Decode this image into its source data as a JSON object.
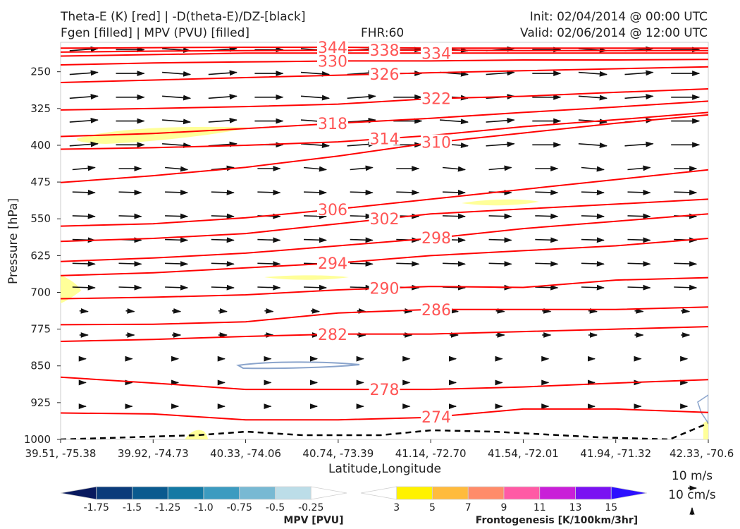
{
  "header": {
    "title_line1": "Theta-E (K) [red] | -D(theta-E)/DZ-[black]",
    "title_line2": "Fgen [filled] | MPV (PVU) [filled]",
    "fhr": "FHR:60",
    "init": "Init: 02/04/2014 @ 00:00 UTC",
    "valid": "Valid: 02/06/2014 @ 12:00 UTC"
  },
  "chart_data": {
    "type": "cross-section",
    "xlabel": "Latitude,Longitude",
    "ylabel": "Pressure [hPa]",
    "x_ticks": [
      "39.51, -75.38",
      "39.92, -74.73",
      "40.33, -74.06",
      "40.74, -73.39",
      "41.14, -72.70",
      "41.54, -72.01",
      "41.94, -71.32",
      "42.33, -70.6"
    ],
    "y_ticks": [
      250,
      325,
      400,
      475,
      550,
      625,
      700,
      775,
      850,
      925,
      1000
    ],
    "y_range": [
      190,
      1000
    ],
    "theta_e_color": "#ff0000",
    "theta_e_label_color": "#ff5555",
    "theta_e_contours": [
      {
        "label": "344",
        "p": [
          202,
          201,
          200,
          200,
          202,
          202,
          202,
          202
        ]
      },
      {
        "label": "338",
        "p": [
          210,
          208,
          207,
          206,
          206,
          207,
          207,
          207
        ]
      },
      {
        "label": "334",
        "p": [
          218,
          215,
          212,
          212,
          212,
          212,
          212,
          212
        ]
      },
      {
        "label": "330",
        "p": [
          236,
          232,
          230,
          228,
          228,
          226,
          226,
          225
        ]
      },
      {
        "label": "326",
        "p": [
          272,
          267,
          262,
          257,
          252,
          248,
          244,
          240
        ]
      },
      {
        "label": "322",
        "p": [
          328,
          325,
          321,
          316,
          305,
          300,
          292,
          285
        ]
      },
      {
        "label": "318",
        "p": [
          382,
          376,
          366,
          355,
          345,
          333,
          322,
          310
        ]
      },
      {
        "label": "314",
        "p": [
          408,
          405,
          400,
          393,
          380,
          362,
          348,
          333
        ]
      },
      {
        "label": "310",
        "p": [
          476,
          462,
          445,
          422,
          395,
          375,
          355,
          338
        ]
      },
      {
        "label": "306",
        "p": [
          565,
          560,
          548,
          530,
          510,
          490,
          470,
          450
        ]
      },
      {
        "label": "302",
        "p": [
          596,
          590,
          580,
          560,
          540,
          530,
          520,
          510
        ]
      },
      {
        "label": "298",
        "p": [
          637,
          630,
          620,
          605,
          590,
          570,
          555,
          540
        ]
      },
      {
        "label": "294",
        "p": [
          666,
          660,
          650,
          640,
          625,
          615,
          605,
          590
        ]
      },
      {
        "label": "290",
        "p": [
          713,
          710,
          705,
          695,
          688,
          690,
          675,
          670
        ]
      },
      {
        "label": "286",
        "p": [
          766,
          765,
          760,
          742,
          735,
          735,
          735,
          730
        ]
      },
      {
        "label": "282",
        "p": [
          800,
          796,
          790,
          785,
          785,
          780,
          775,
          770
        ]
      },
      {
        "label": "278",
        "p": [
          873,
          885,
          898,
          898,
          898,
          893,
          885,
          878
        ]
      },
      {
        "label": "274",
        "p": [
          946,
          948,
          960,
          960,
          955,
          938,
          938,
          945
        ]
      }
    ],
    "mpv_legend": {
      "label": "MPV [PVU]",
      "ticks": [
        "-1.75",
        "-1.5",
        "-1.25",
        "-1.0",
        "-0.75",
        "-0.5",
        "-0.25"
      ],
      "colors": [
        "#08195e",
        "#0b3b7a",
        "#0a5a8f",
        "#1479a4",
        "#3c9bc0",
        "#78b9d3",
        "#bcdde8",
        "#ffffff"
      ]
    },
    "fgen_legend": {
      "label": "Frontogenesis [K/100km/3hr]",
      "ticks": [
        "3",
        "5",
        "7",
        "9",
        "11",
        "13",
        "15"
      ],
      "colors": [
        "#ffffff",
        "#fff200",
        "#ffbb3d",
        "#ff8c6a",
        "#ff5aa5",
        "#c91fd8",
        "#7a12f2",
        "#2d10ff"
      ]
    },
    "vector_key": {
      "horizontal": "10 m/s",
      "vertical": "10 cm/s"
    }
  }
}
